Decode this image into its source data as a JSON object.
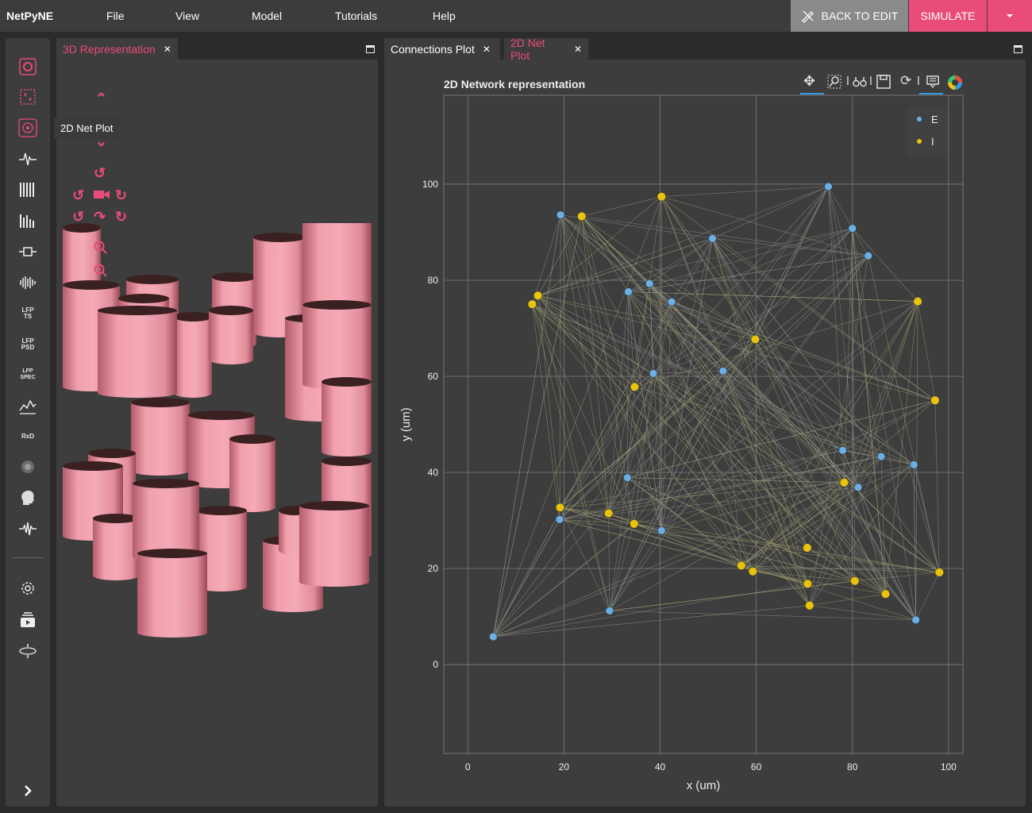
{
  "app": {
    "brand": "NetPyNE",
    "menu": [
      "File",
      "View",
      "Model",
      "Tutorials",
      "Help"
    ],
    "back_to_edit": "BACK TO EDIT",
    "simulate": "SIMULATE"
  },
  "sidebar": {
    "icons": [
      "netpyne-logo-icon",
      "grid-dots-icon",
      "network-icon",
      "trace-icon",
      "raster-icon",
      "histogram-icon",
      "connection-icon",
      "spectrogram-icon",
      "lfp-ts-icon",
      "lfp-psd-icon",
      "lfp-spec-icon",
      "line-chart-icon",
      "rxd-icon",
      "dipole-icon",
      "head-icon",
      "eeg-icon",
      "settings-icon",
      "tutorials-icon",
      "experiments-icon"
    ],
    "lfp_ts": "LFP TS",
    "lfp_psd": "LFP PSD",
    "lfp_spec": "LFP SPEC",
    "rxd": "RxD",
    "tooltip": "2D Net Plot"
  },
  "left_panel": {
    "tab": "3D Representation",
    "tab_color": "#e94c78"
  },
  "right_panel": {
    "tabs": [
      {
        "label": "Connections Plot",
        "active": false
      },
      {
        "label": "2D Net Plot",
        "active": true
      }
    ],
    "plot_title": "2D Network representation"
  },
  "chart_data": {
    "type": "scatter",
    "title": "2D Network representation",
    "xlabel": "x (um)",
    "ylabel": "y (um)",
    "xlim": [
      -5,
      103
    ],
    "ylim": [
      -18.5,
      118.5
    ],
    "xticks": [
      0,
      20,
      40,
      60,
      80,
      100
    ],
    "yticks": [
      0,
      20,
      40,
      60,
      80,
      100
    ],
    "grid": true,
    "legend_position": "top-right",
    "series": [
      {
        "name": "E",
        "color": "#6ab0e6",
        "points": [
          [
            75,
            99.5
          ],
          [
            19.3,
            93.6
          ],
          [
            80,
            90.8
          ],
          [
            50.9,
            88.7
          ],
          [
            83.3,
            85.1
          ],
          [
            37.8,
            79.3
          ],
          [
            33.4,
            77.6
          ],
          [
            42.4,
            75.5
          ],
          [
            53.1,
            61.1
          ],
          [
            38.6,
            60.6
          ],
          [
            78,
            44.6
          ],
          [
            86,
            43.3
          ],
          [
            92.8,
            41.6
          ],
          [
            33.2,
            38.9
          ],
          [
            81.2,
            36.9
          ],
          [
            19.1,
            30.2
          ],
          [
            40.3,
            27.9
          ],
          [
            29.5,
            11.2
          ],
          [
            93.2,
            9.3
          ],
          [
            5.3,
            5.8
          ]
        ]
      },
      {
        "name": "I",
        "color": "#e8c30c",
        "points": [
          [
            40.3,
            97.4
          ],
          [
            23.7,
            93.3
          ],
          [
            14.6,
            76.8
          ],
          [
            13.4,
            75.0
          ],
          [
            93.6,
            75.6
          ],
          [
            59.8,
            67.7
          ],
          [
            34.7,
            57.8
          ],
          [
            97.2,
            55.0
          ],
          [
            78.3,
            37.9
          ],
          [
            19.2,
            32.7
          ],
          [
            29.3,
            31.5
          ],
          [
            34.6,
            29.3
          ],
          [
            70.6,
            24.3
          ],
          [
            56.9,
            20.6
          ],
          [
            59.3,
            19.4
          ],
          [
            98.1,
            19.2
          ],
          [
            70.7,
            16.8
          ],
          [
            80.5,
            17.4
          ],
          [
            86.9,
            14.7
          ],
          [
            71.1,
            12.3
          ]
        ]
      }
    ]
  }
}
